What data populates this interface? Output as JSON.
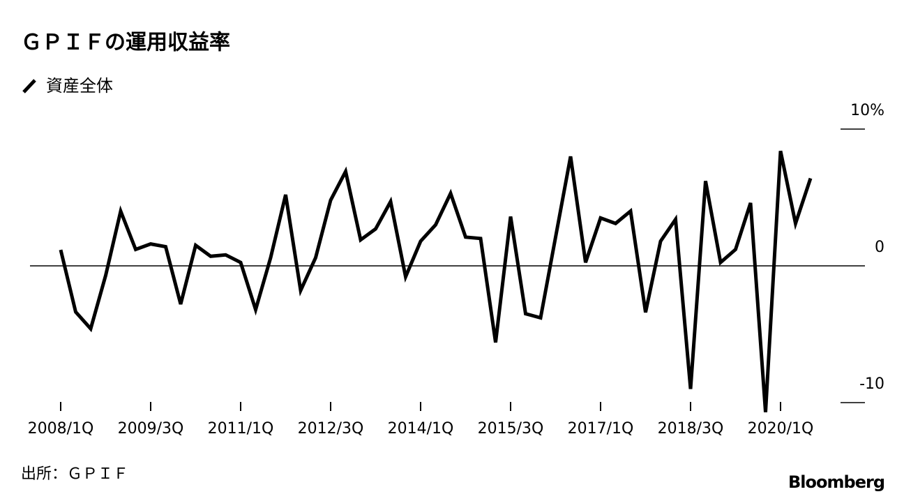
{
  "chart_data": {
    "type": "line",
    "title": "ＧＰＩＦの運用収益率",
    "categories": [
      "2008/1Q",
      null,
      null,
      null,
      null,
      null,
      "2009/3Q",
      null,
      null,
      null,
      null,
      null,
      "2011/1Q",
      null,
      null,
      null,
      null,
      null,
      "2012/3Q",
      null,
      null,
      null,
      null,
      null,
      "2014/1Q",
      null,
      null,
      null,
      null,
      null,
      "2015/3Q",
      null,
      null,
      null,
      null,
      null,
      "2017/1Q",
      null,
      null,
      null,
      null,
      null,
      "2018/3Q",
      null,
      null,
      null,
      null,
      null,
      "2020/1Q",
      null,
      null
    ],
    "series": [
      {
        "name": "資産全体",
        "color": "#000000",
        "values": [
          1.17,
          -3.37,
          -4.6,
          -0.7,
          4.0,
          1.2,
          1.6,
          1.4,
          -2.8,
          1.5,
          0.7,
          0.8,
          0.25,
          -3.2,
          0.6,
          5.2,
          -1.8,
          0.6,
          4.8,
          6.9,
          1.9,
          2.7,
          4.7,
          -0.8,
          1.8,
          3.0,
          5.3,
          2.1,
          2.0,
          -5.6,
          3.6,
          -3.5,
          -3.8,
          2.1,
          8.0,
          0.25,
          3.5,
          3.1,
          4.0,
          -3.4,
          1.8,
          3.4,
          -9.0,
          6.2,
          0.25,
          1.2,
          4.6,
          -10.7,
          8.4,
          3.1,
          6.4
        ]
      }
    ],
    "ylim": [
      -11,
      11
    ],
    "yticks": [
      {
        "value": 10,
        "label": "10%"
      },
      0,
      -10
    ],
    "source": "出所：ＧＰＩＦ",
    "brand": "Bloomberg"
  }
}
